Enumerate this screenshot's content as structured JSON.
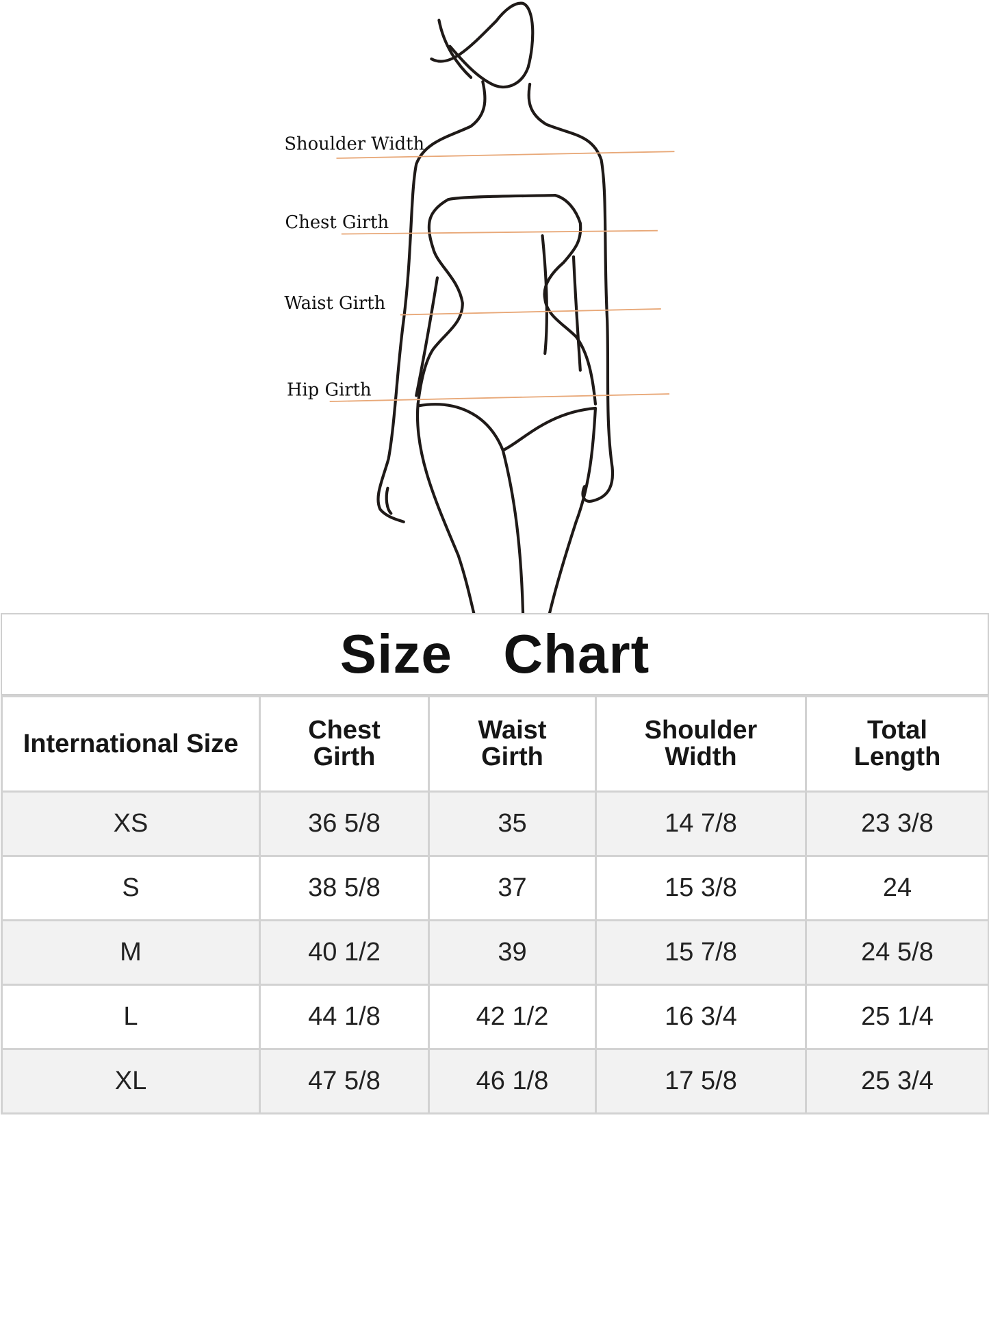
{
  "figure": {
    "labels": {
      "shoulder": "Shoulder Width",
      "chest": "Chest Girth",
      "waist": "Waist Girth",
      "hip": "Hip Girth"
    },
    "line_color": "#e8a878"
  },
  "title": "Size  Chart",
  "table": {
    "headers": [
      "International Size",
      "Chest\nGirth",
      "Waist\nGirth",
      "Shoulder\nWidth",
      "Total\nLength"
    ],
    "rows": [
      [
        "XS",
        "36 5/8",
        "35",
        "14 7/8",
        "23 3/8"
      ],
      [
        "S",
        "38 5/8",
        "37",
        "15 3/8",
        "24"
      ],
      [
        "M",
        "40 1/2",
        "39",
        "15 7/8",
        "24 5/8"
      ],
      [
        "L",
        "44 1/8",
        "42 1/2",
        "16 3/4",
        "25 1/4"
      ],
      [
        "XL",
        "47 5/8",
        "46 1/8",
        "17 5/8",
        "25 3/4"
      ]
    ]
  }
}
